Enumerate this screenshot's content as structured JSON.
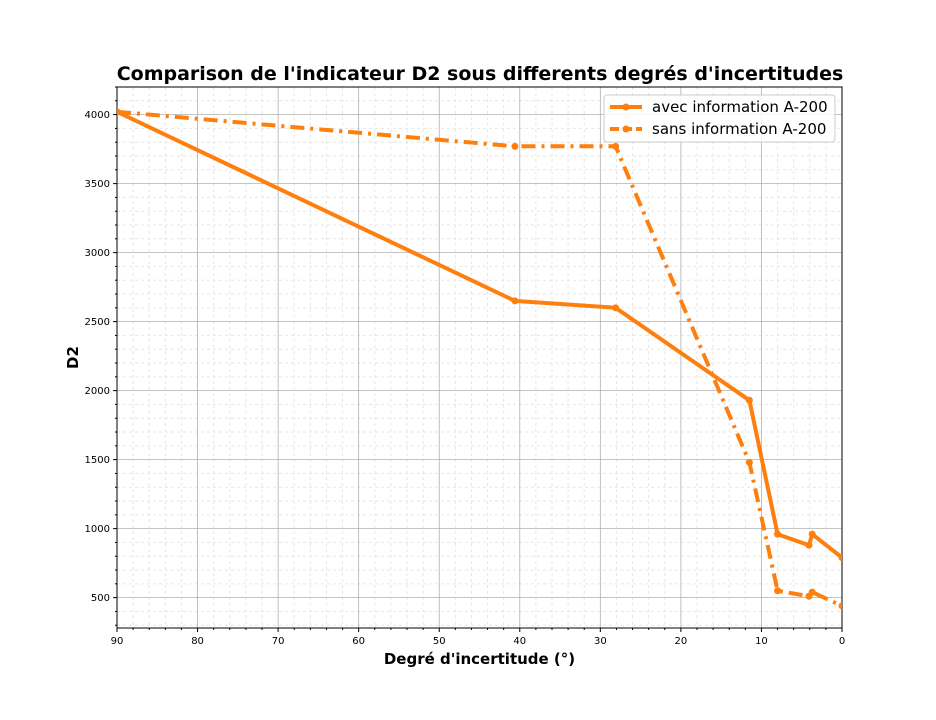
{
  "chart_data": {
    "type": "line",
    "title": "Comparison de l'indicateur D2 sous differents degrés d'incertitudes",
    "xlabel": "Degré d'incertitude (°)",
    "ylabel": "D2",
    "xlim": [
      90,
      0
    ],
    "ylim": [
      280,
      4200
    ],
    "x_inverted": true,
    "xticks": [
      90,
      80,
      70,
      60,
      50,
      40,
      30,
      20,
      10,
      0
    ],
    "yticks": [
      500,
      1000,
      1500,
      2000,
      2500,
      3000,
      3500,
      4000
    ],
    "grid": true,
    "minor_grid": true,
    "legend_position": "top-right",
    "series": [
      {
        "name": "avec information A-200",
        "style": "solid",
        "color": "#ff7f0e",
        "x": [
          90,
          40.6,
          28.1,
          11.5,
          8.0,
          4.1,
          3.7,
          0
        ],
        "y": [
          4020,
          2650,
          2600,
          1930,
          960,
          880,
          960,
          790
        ]
      },
      {
        "name": "sans information A-200",
        "style": "dashdot",
        "color": "#ff7f0e",
        "x": [
          90,
          40.6,
          28.1,
          11.5,
          8.0,
          4.1,
          3.7,
          0
        ],
        "y": [
          4020,
          3770,
          3770,
          1480,
          550,
          510,
          540,
          440
        ]
      }
    ]
  }
}
